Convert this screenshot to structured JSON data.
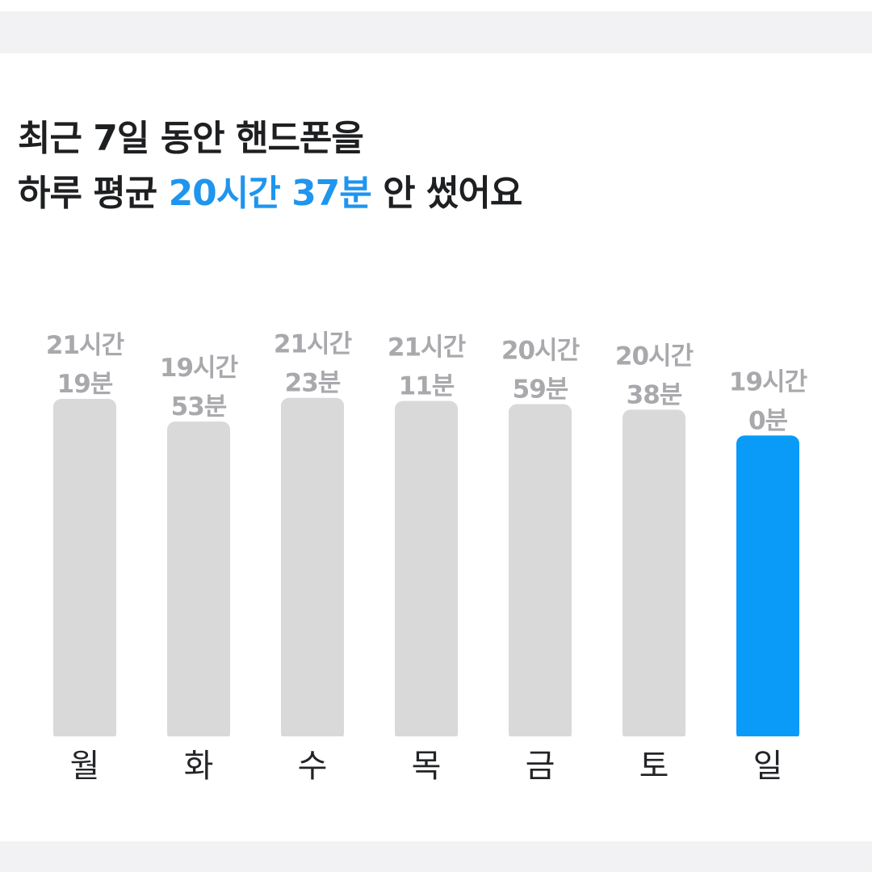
{
  "headline": {
    "line1": "최근 7일 동안 핸드폰을",
    "line2_prefix": "하루 평균 ",
    "line2_highlight": "20시간 37분",
    "line2_suffix": " 안 썼어요"
  },
  "colors": {
    "highlight": "#1f95ee",
    "bar_default": "#d9d9d9",
    "bar_current": "#0a9bf8",
    "value_label": "#a9a9ad",
    "day_label": "#232427"
  },
  "chart_data": {
    "type": "bar",
    "categories": [
      "월",
      "화",
      "수",
      "목",
      "금",
      "토",
      "일"
    ],
    "value_labels": [
      [
        "21시간",
        "19분"
      ],
      [
        "19시간",
        "53분"
      ],
      [
        "21시간",
        "23분"
      ],
      [
        "21시간",
        "11분"
      ],
      [
        "20시간",
        "59분"
      ],
      [
        "20시간",
        "38분"
      ],
      [
        "19시간",
        "0분"
      ]
    ],
    "values": [
      1279,
      1193,
      1283,
      1271,
      1259,
      1238,
      1140
    ],
    "unit": "minutes",
    "highlight_index": 6,
    "grid": false,
    "legend": "none",
    "title": "최근 7일 동안 핸드폰을 하루 평균 20시간 37분 안 썼어요",
    "xlabel": "",
    "ylabel": ""
  }
}
